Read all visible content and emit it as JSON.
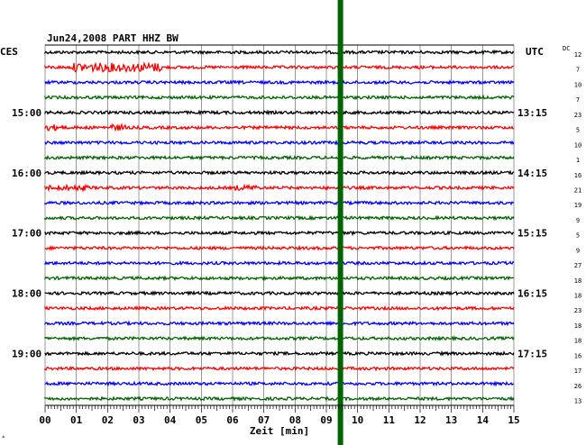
{
  "chart_data": {
    "type": "line",
    "title": "Jun24,2008   PART HHZ BW",
    "left_label": "CES",
    "right_label": "UTC",
    "dc_header": "DC",
    "xlabel": "Zeit [min]",
    "xlim": [
      0,
      15
    ],
    "x_ticks": [
      "00",
      "01",
      "02",
      "03",
      "04",
      "05",
      "06",
      "07",
      "08",
      "09",
      "10",
      "11",
      "12",
      "13",
      "14",
      "15"
    ],
    "left_hour_labels": [
      "15:00",
      "16:00",
      "17:00",
      "18:00",
      "19:00"
    ],
    "right_hour_labels": [
      "13:15",
      "14:15",
      "15:15",
      "16:15",
      "17:15"
    ],
    "dc_values": [
      "12",
      "7",
      "10",
      "7",
      "23",
      "5",
      "10",
      "1",
      "16",
      "21",
      "19",
      "9",
      "5",
      "9",
      "27",
      "18",
      "18",
      "23",
      "18",
      "18",
      "16",
      "17",
      "26",
      "13"
    ],
    "trace_colors": [
      "#000000",
      "#ff0000",
      "#0000ff",
      "#006400"
    ],
    "event_line_minute": 9.45,
    "event_color": "#006400",
    "corner_mark": "*",
    "series_count": 24,
    "trace_interval_minutes": 15
  }
}
